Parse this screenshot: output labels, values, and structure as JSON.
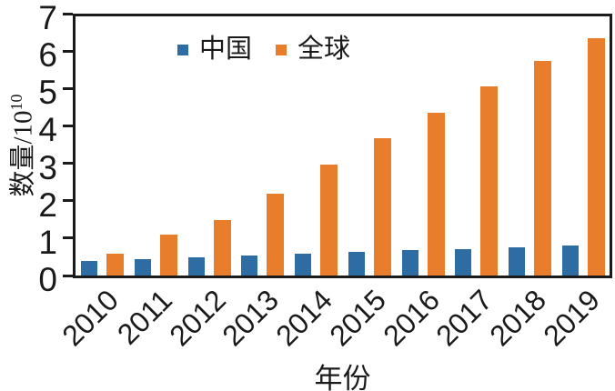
{
  "chart_data": {
    "type": "bar",
    "title": "",
    "categories": [
      "2010",
      "2011",
      "2012",
      "2013",
      "2014",
      "2015",
      "2016",
      "2017",
      "2018",
      "2019"
    ],
    "series": [
      {
        "name": "中国",
        "color": "#2e6da4",
        "values": [
          0.4,
          0.45,
          0.5,
          0.55,
          0.6,
          0.65,
          0.7,
          0.72,
          0.75,
          0.8
        ]
      },
      {
        "name": "全球",
        "color": "#e87d2b",
        "values": [
          0.6,
          1.1,
          1.5,
          2.2,
          3.0,
          3.7,
          4.4,
          5.1,
          5.8,
          6.4
        ]
      }
    ],
    "xlabel": "年份",
    "ylabel_text": "数量/10",
    "ylabel_exponent": "10",
    "ylim": [
      0,
      7
    ],
    "yticks": [
      "0",
      "1",
      "2",
      "3",
      "4",
      "5",
      "6",
      "7"
    ],
    "x_tick_rotation": -45,
    "grid": false,
    "legend_position": "top-left-inside",
    "axis_color": "#1a1a1a",
    "background_color": "#ffffff"
  }
}
